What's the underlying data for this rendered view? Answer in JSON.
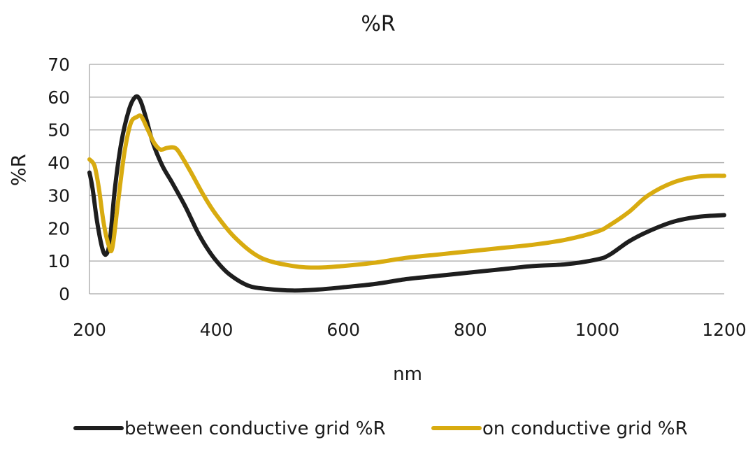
{
  "chart_data": {
    "type": "line",
    "title": "%R",
    "xlabel": "nm",
    "ylabel": "%R",
    "xlim": [
      200,
      1200
    ],
    "ylim": [
      0,
      70
    ],
    "xticks": [
      "200",
      "400",
      "600",
      "800",
      "1000",
      "1200"
    ],
    "yticks": [
      "0",
      "10",
      "20",
      "30",
      "40",
      "50",
      "60",
      "70"
    ],
    "grid": "horizontal",
    "legend": "bottom",
    "series": [
      {
        "name": "between conductive grid %R",
        "color": "#1e1e1e",
        "x": [
          200,
          205,
          212,
          220,
          226,
          232,
          240,
          250,
          262,
          272,
          280,
          290,
          300,
          315,
          330,
          350,
          370,
          385,
          400,
          420,
          450,
          480,
          520,
          560,
          600,
          650,
          700,
          750,
          800,
          850,
          900,
          950,
          1000,
          1020,
          1050,
          1080,
          1120,
          1160,
          1200
        ],
        "y": [
          37,
          32,
          22,
          14,
          12,
          16,
          32,
          46,
          56,
          60,
          59,
          53,
          46,
          39,
          34,
          27,
          19,
          14,
          10,
          6,
          2.5,
          1.5,
          1,
          1.3,
          2,
          3,
          4.5,
          5.5,
          6.5,
          7.5,
          8.5,
          9,
          10.5,
          12,
          16,
          19,
          22,
          23.5,
          24
        ]
      },
      {
        "name": "on conductive grid %R",
        "color": "#d8ab10",
        "x": [
          200,
          208,
          215,
          222,
          230,
          236,
          245,
          255,
          265,
          275,
          282,
          292,
          302,
          312,
          322,
          335,
          345,
          360,
          380,
          400,
          430,
          470,
          520,
          560,
          600,
          650,
          700,
          750,
          800,
          850,
          900,
          950,
          1000,
          1020,
          1050,
          1080,
          1120,
          1160,
          1200
        ],
        "y": [
          41,
          39,
          32,
          22,
          15,
          14,
          28,
          43,
          52,
          54,
          54,
          50,
          46,
          44,
          44.5,
          44.5,
          42,
          37,
          30,
          24,
          17,
          11,
          8.5,
          8,
          8.5,
          9.5,
          11,
          12,
          13,
          14,
          15,
          16.5,
          19,
          21,
          25,
          30,
          34,
          35.8,
          36
        ]
      }
    ]
  }
}
